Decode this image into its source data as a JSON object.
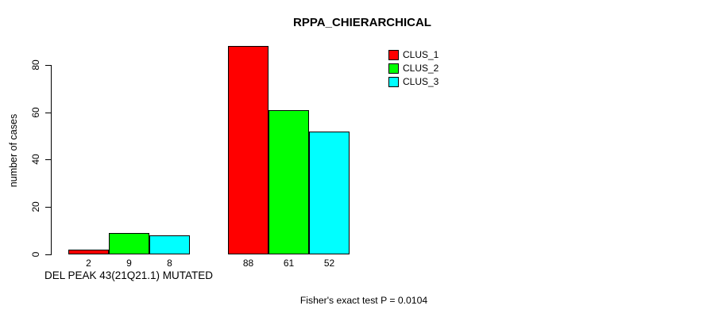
{
  "chart_data": {
    "type": "bar",
    "title": "RPPA_CHIERARCHICAL",
    "ylabel": "number of cases",
    "xlabel": "DEL PEAK 43(21Q21.1) MUTATED",
    "footnote": "Fisher's exact test P = 0.0104",
    "categories": [
      "DEL PEAK 43(21Q21.1) MUTATED",
      ""
    ],
    "series": [
      {
        "name": "CLUS_1",
        "color": "#ff0000",
        "values": [
          2,
          88
        ]
      },
      {
        "name": "CLUS_2",
        "color": "#00ff00",
        "values": [
          9,
          61
        ]
      },
      {
        "name": "CLUS_3",
        "color": "#00ffff",
        "values": [
          8,
          52
        ]
      }
    ],
    "yticks": [
      0,
      20,
      40,
      60,
      80
    ],
    "ylim": [
      0,
      88
    ],
    "grid": false,
    "legend_position": "top-right",
    "axis_color": "#000000",
    "bar_border_color": "#000000"
  }
}
